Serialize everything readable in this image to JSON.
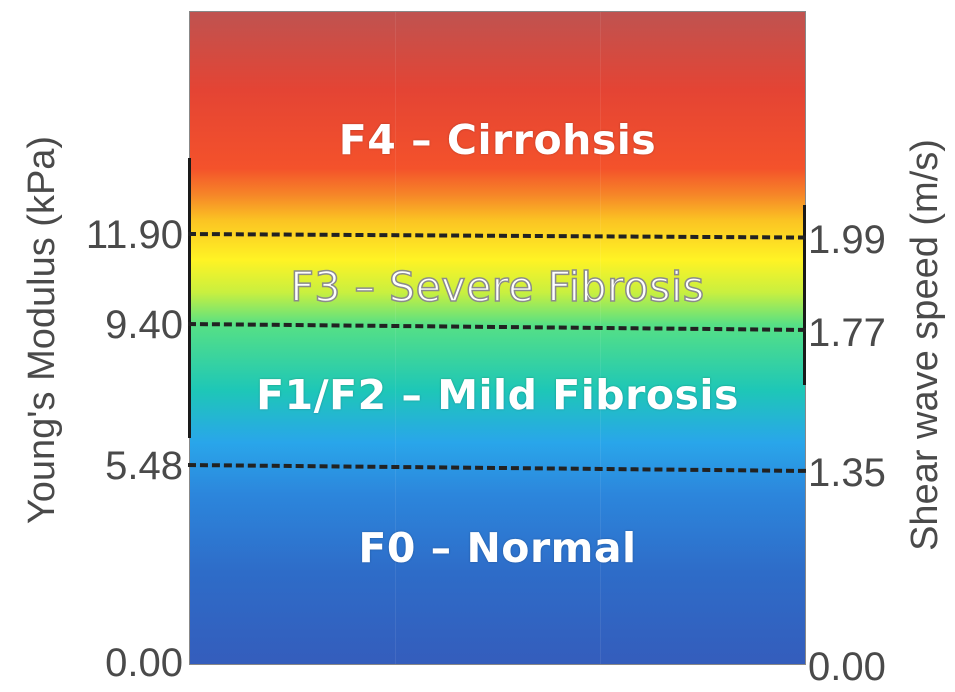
{
  "axes": {
    "left_title": "Young's Modulus (kPa)",
    "right_title": "Shear wave speed (m/s)"
  },
  "left_ticks": [
    "11.90",
    "9.40",
    "5.48",
    "0.00"
  ],
  "right_ticks": [
    "1.99",
    "1.77",
    "1.35",
    "0.00"
  ],
  "zones": [
    {
      "label": "F4 – Cirrohsis",
      "color": "#e44434"
    },
    {
      "label": "F3 – Severe Fibrosis",
      "color": "#fff324"
    },
    {
      "label": "F1/F2 – Mild Fibrosis",
      "color": "#1ec7b7"
    },
    {
      "label": "F0 – Normal",
      "color": "#2e6cc8"
    }
  ],
  "colors": {
    "text_dark": "#4a4a4a",
    "divider": "#222222"
  }
}
